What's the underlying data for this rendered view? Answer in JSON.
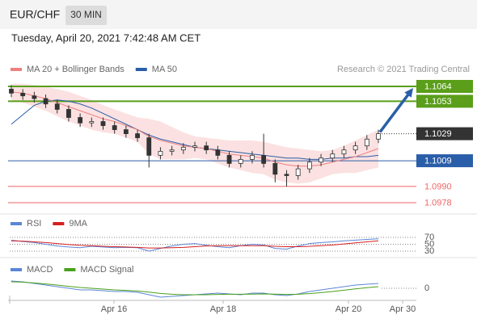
{
  "header": {
    "symbol": "EUR/CHF",
    "interval": "30 MIN",
    "datetime": "Tuesday, April 20, 2021 7:42:48 AM CET"
  },
  "chart_data": [
    {
      "type": "candlestick",
      "credit": "Research © 2021 Trading Central",
      "open": [
        1.1062,
        1.1059,
        1.1057,
        1.1055,
        1.1051,
        1.1047,
        1.1041,
        1.1037,
        1.1038,
        1.1035,
        1.1032,
        1.1029,
        1.1026,
        1.1013,
        1.1016,
        1.1017,
        1.1019,
        1.102,
        1.1017,
        1.1013,
        1.1007,
        1.101,
        1.1013,
        1.1007,
        1.0999,
        1.0998,
        1.1003,
        1.1008,
        1.1011,
        1.1014,
        1.1017,
        1.102,
        1.1025
      ],
      "high": [
        1.1065,
        1.1062,
        1.106,
        1.1058,
        1.1054,
        1.105,
        1.1044,
        1.1041,
        1.1041,
        1.1038,
        1.1035,
        1.1032,
        1.1029,
        1.1019,
        1.102,
        1.1022,
        1.1023,
        1.1023,
        1.102,
        1.1016,
        1.1013,
        1.1016,
        1.1029,
        1.101,
        1.1002,
        1.1006,
        1.1011,
        1.1014,
        1.1017,
        1.102,
        1.1023,
        1.1028,
        1.1032
      ],
      "low": [
        1.1056,
        1.1054,
        1.1052,
        1.1048,
        1.1044,
        1.1038,
        1.1034,
        1.1034,
        1.1032,
        1.1029,
        1.1026,
        1.1023,
        1.1004,
        1.101,
        1.1013,
        1.1014,
        1.1016,
        1.1014,
        1.101,
        1.1004,
        1.1004,
        1.1007,
        1.1004,
        1.0993,
        1.099,
        1.0995,
        1.1,
        1.1005,
        1.1008,
        1.1011,
        1.1014,
        1.1017,
        1.1022
      ],
      "close": [
        1.1059,
        1.1057,
        1.1055,
        1.1051,
        1.1047,
        1.1041,
        1.1037,
        1.1038,
        1.1035,
        1.1032,
        1.1029,
        1.1026,
        1.1013,
        1.1016,
        1.1017,
        1.1019,
        1.102,
        1.1017,
        1.1013,
        1.1007,
        1.101,
        1.1013,
        1.1007,
        1.0999,
        1.0998,
        1.1003,
        1.1008,
        1.1011,
        1.1014,
        1.1017,
        1.102,
        1.1025,
        1.1029
      ],
      "series": [
        {
          "name": "MA 20 + Bollinger Bands",
          "color": "#ee8080",
          "values": [
            1.106,
            1.1059,
            1.1057,
            1.1055,
            1.1052,
            1.1049,
            1.1046,
            1.1043,
            1.104,
            1.1038,
            1.1035,
            1.1032,
            1.1027,
            1.1024,
            1.1022,
            1.102,
            1.1019,
            1.1018,
            1.1016,
            1.1014,
            1.1013,
            1.1012,
            1.1011,
            1.1008,
            1.1006,
            1.1005,
            1.1005,
            1.1006,
            1.1008,
            1.101,
            1.1012,
            1.1015,
            1.1018
          ],
          "upper": [
            1.1066,
            1.1066,
            1.1065,
            1.1064,
            1.1062,
            1.106,
            1.1057,
            1.1054,
            1.105,
            1.1047,
            1.1044,
            1.1041,
            1.104,
            1.1038,
            1.1034,
            1.103,
            1.1027,
            1.1026,
            1.1025,
            1.1024,
            1.1024,
            1.1024,
            1.1023,
            1.1021,
            1.1019,
            1.1018,
            1.1017,
            1.1016,
            1.1017,
            1.102,
            1.1024,
            1.1028,
            1.1032
          ],
          "lower": [
            1.1054,
            1.1052,
            1.1049,
            1.1046,
            1.1042,
            1.1038,
            1.1035,
            1.1032,
            1.103,
            1.1029,
            1.1026,
            1.1023,
            1.1014,
            1.101,
            1.101,
            1.101,
            1.1011,
            1.101,
            1.1007,
            1.1004,
            1.1002,
            1.1,
            1.0999,
            1.0995,
            1.0993,
            1.0992,
            1.0993,
            1.0996,
            1.0999,
            1.1,
            1.1,
            1.1002,
            1.1004
          ]
        },
        {
          "name": "MA 50",
          "color": "#2a5ea8",
          "values": [
            1.1036,
            1.1043,
            1.105,
            1.1053,
            1.1054,
            1.1053,
            1.1051,
            1.1048,
            1.1044,
            1.104,
            1.1036,
            1.1032,
            1.1028,
            1.1025,
            1.1023,
            1.1021,
            1.1019,
            1.1018,
            1.1017,
            1.1016,
            1.1015,
            1.1014,
            1.1013,
            1.1012,
            1.1011,
            1.1011,
            1.101,
            1.101,
            1.1011,
            1.1011,
            1.1012,
            1.1012,
            1.1013
          ]
        }
      ],
      "levels": [
        {
          "value": 1.1064,
          "label": "1.1064",
          "color": "#5a9e1a",
          "boxed": true,
          "line": "solid"
        },
        {
          "value": 1.1053,
          "label": "1.1053",
          "color": "#5a9e1a",
          "boxed": true,
          "line": "solid"
        },
        {
          "value": 1.1029,
          "label": "1.1029",
          "color": "#333333",
          "boxed": true,
          "line": "dotted"
        },
        {
          "value": 1.1009,
          "label": "1.1009",
          "color": "#2a5ea8",
          "boxed": true,
          "line": "solid"
        },
        {
          "value": 1.099,
          "label": "1.0990",
          "color": "#ee6666",
          "boxed": false,
          "line": "solid"
        },
        {
          "value": 1.0978,
          "label": "1.0978",
          "color": "#ee6666",
          "boxed": false,
          "line": "solid"
        }
      ],
      "ylim": [
        1.0972,
        1.1068
      ],
      "x_labels": [
        "Apr 16",
        "Apr 18",
        "Apr 20",
        "Apr 30"
      ]
    },
    {
      "type": "line",
      "series": [
        {
          "name": "RSI",
          "color": "#5b86d6",
          "values": [
            62,
            58,
            55,
            50,
            45,
            42,
            40,
            44,
            42,
            40,
            41,
            40,
            30,
            38,
            45,
            50,
            52,
            47,
            43,
            40,
            46,
            50,
            48,
            38,
            36,
            45,
            52,
            55,
            57,
            60,
            62,
            64,
            66
          ]
        },
        {
          "name": "9MA",
          "color": "#d42020",
          "values": [
            60,
            59,
            57,
            55,
            52,
            49,
            47,
            46,
            44,
            43,
            42,
            41,
            39,
            39,
            40,
            41,
            43,
            45,
            46,
            46,
            46,
            46,
            46,
            44,
            43,
            43,
            44,
            46,
            48,
            51,
            54,
            57,
            60
          ]
        }
      ],
      "ylim": [
        0,
        100
      ],
      "yticks": [
        70,
        50,
        30
      ]
    },
    {
      "type": "line",
      "series": [
        {
          "name": "MACD",
          "color": "#5b86d6",
          "values": [
            0.00045,
            0.0004,
            0.0003,
            0.0002,
            0.0001,
            0.0,
            -0.0001,
            -0.0001,
            -0.00015,
            -0.0002,
            -0.0002,
            -0.00025,
            -0.0004,
            -0.00055,
            -0.0005,
            -0.00045,
            -0.0004,
            -0.00035,
            -0.0003,
            -0.00035,
            -0.0004,
            -0.0003,
            -0.0003,
            -0.0004,
            -0.00045,
            -0.00035,
            -0.0002,
            -0.0001,
            0.0,
            0.0001,
            0.0002,
            0.00025,
            0.0003
          ]
        },
        {
          "name": "MACD Signal",
          "color": "#4aa01c",
          "values": [
            0.0004,
            0.00038,
            0.00033,
            0.00027,
            0.0002,
            0.00012,
            5e-05,
            0.0,
            -5e-05,
            -0.0001,
            -0.00013,
            -0.00017,
            -0.00024,
            -0.00032,
            -0.00037,
            -0.0004,
            -0.0004,
            -0.0004,
            -0.00038,
            -0.00037,
            -0.00037,
            -0.00036,
            -0.00035,
            -0.00036,
            -0.00038,
            -0.00037,
            -0.00033,
            -0.00027,
            -0.0002,
            -0.00012,
            -4e-05,
            4e-05,
            0.0001
          ]
        }
      ],
      "ylim": [
        -0.00115,
        0.00135
      ],
      "yticks": [
        0
      ]
    }
  ]
}
